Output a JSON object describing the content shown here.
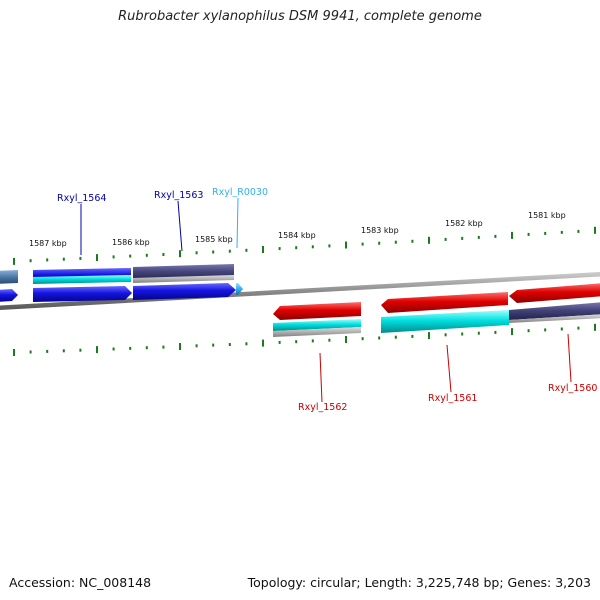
{
  "title": "Rubrobacter xylanophilus DSM 9941, complete genome",
  "footer": {
    "accession": "Accession: NC_008148",
    "summary": "Topology: circular; Length: 3,225,748 bp; Genes: 3,203"
  },
  "colors": {
    "tick": "#1e7a1e",
    "backbone": "#8c8c8c",
    "blue_gene": "#1414e0",
    "navy_gene": "#44447a",
    "cyan_gene": "#00e0e0",
    "red_gene": "#e00000",
    "light_blue_gene": "#30b0f0",
    "steel_gene": "#4a78a8",
    "grey_gene": "#b0b0b0"
  },
  "ticks": {
    "labels": [
      "1587 kbp",
      "1586 kbp",
      "1585 kbp",
      "1584 kbp",
      "1583 kbp",
      "1582 kbp",
      "1581 kbp"
    ]
  },
  "genes": [
    {
      "name": "Rxyl_1564",
      "color": "#0000aa"
    },
    {
      "name": "Rxyl_1563",
      "color": "#0000aa"
    },
    {
      "name": "Rxyl_R0030",
      "color": "#30b0f0"
    },
    {
      "name": "Rxyl_1562",
      "color": "#cc0000"
    },
    {
      "name": "Rxyl_1561",
      "color": "#cc0000"
    },
    {
      "name": "Rxyl_1560",
      "color": "#cc0000"
    }
  ]
}
